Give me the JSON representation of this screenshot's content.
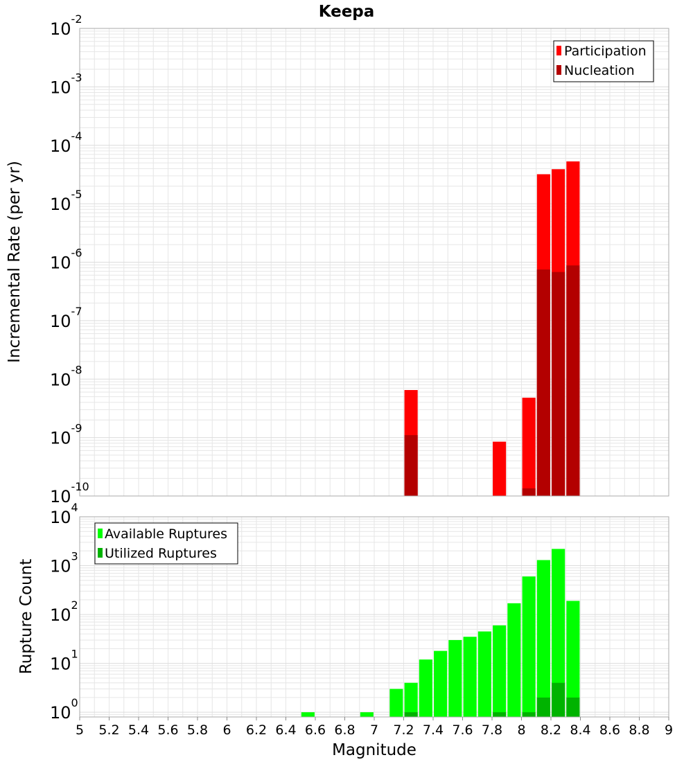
{
  "colors": {
    "participation": "#ff0000",
    "nucleation": "#b30000",
    "available": "#00ff00",
    "utilized": "#00b300",
    "grid": "#e6e6e6",
    "frame": "#aaaaaa"
  },
  "chart_data": [
    {
      "type": "bar",
      "title": "Keepa",
      "xlabel": "",
      "ylabel": "Incremental Rate (per yr)",
      "yscale": "log",
      "ylim": [
        1e-10,
        0.01
      ],
      "xlim": [
        5,
        9
      ],
      "grid": true,
      "legend_position": "top-right",
      "y_tick_labels": [
        {
          "base": "10",
          "exp": "-10"
        },
        {
          "base": "10",
          "exp": "-9"
        },
        {
          "base": "10",
          "exp": "-8"
        },
        {
          "base": "10",
          "exp": "-7"
        },
        {
          "base": "10",
          "exp": "-6"
        },
        {
          "base": "10",
          "exp": "-5"
        },
        {
          "base": "10",
          "exp": "-4"
        },
        {
          "base": "10",
          "exp": "-3"
        },
        {
          "base": "10",
          "exp": "-2"
        }
      ],
      "series": [
        {
          "name": "Participation",
          "x": [
            7.25,
            7.85,
            8.05,
            8.15,
            8.25,
            8.35
          ],
          "values": [
            6.5e-09,
            8.5e-10,
            4.8e-09,
            3.2e-05,
            3.9e-05,
            5.3e-05
          ]
        },
        {
          "name": "Nucleation",
          "x": [
            7.25,
            8.05,
            8.15,
            8.25,
            8.35
          ],
          "values": [
            1.1e-09,
            1.35e-10,
            7.5e-07,
            6.8e-07,
            8.8e-07
          ]
        }
      ]
    },
    {
      "type": "bar",
      "title": "",
      "xlabel": "Magnitude",
      "ylabel": "Rupture Count",
      "yscale": "log",
      "ylim": [
        0.8,
        10000
      ],
      "xlim": [
        5,
        9
      ],
      "grid": true,
      "legend_position": "top-left",
      "x_tick_labels": [
        "5",
        "5.2",
        "5.4",
        "5.6",
        "5.8",
        "6",
        "6.2",
        "6.4",
        "6.6",
        "6.8",
        "7",
        "7.2",
        "7.4",
        "7.6",
        "7.8",
        "8",
        "8.2",
        "8.4",
        "8.6",
        "8.8",
        "9"
      ],
      "y_tick_labels": [
        {
          "base": "10",
          "exp": "0"
        },
        {
          "base": "10",
          "exp": "1"
        },
        {
          "base": "10",
          "exp": "2"
        },
        {
          "base": "10",
          "exp": "3"
        },
        {
          "base": "10",
          "exp": "4"
        }
      ],
      "series": [
        {
          "name": "Available Ruptures",
          "x": [
            6.55,
            6.95,
            7.15,
            7.25,
            7.35,
            7.45,
            7.55,
            7.65,
            7.75,
            7.85,
            7.95,
            8.05,
            8.15,
            8.25,
            8.35
          ],
          "values": [
            1,
            1,
            3,
            4,
            12,
            18,
            30,
            35,
            45,
            60,
            170,
            600,
            1300,
            2200,
            190
          ]
        },
        {
          "name": "Utilized Ruptures",
          "x": [
            7.25,
            7.85,
            8.05,
            8.15,
            8.25,
            8.35
          ],
          "values": [
            1,
            1,
            1,
            2,
            4,
            2
          ]
        }
      ]
    }
  ]
}
